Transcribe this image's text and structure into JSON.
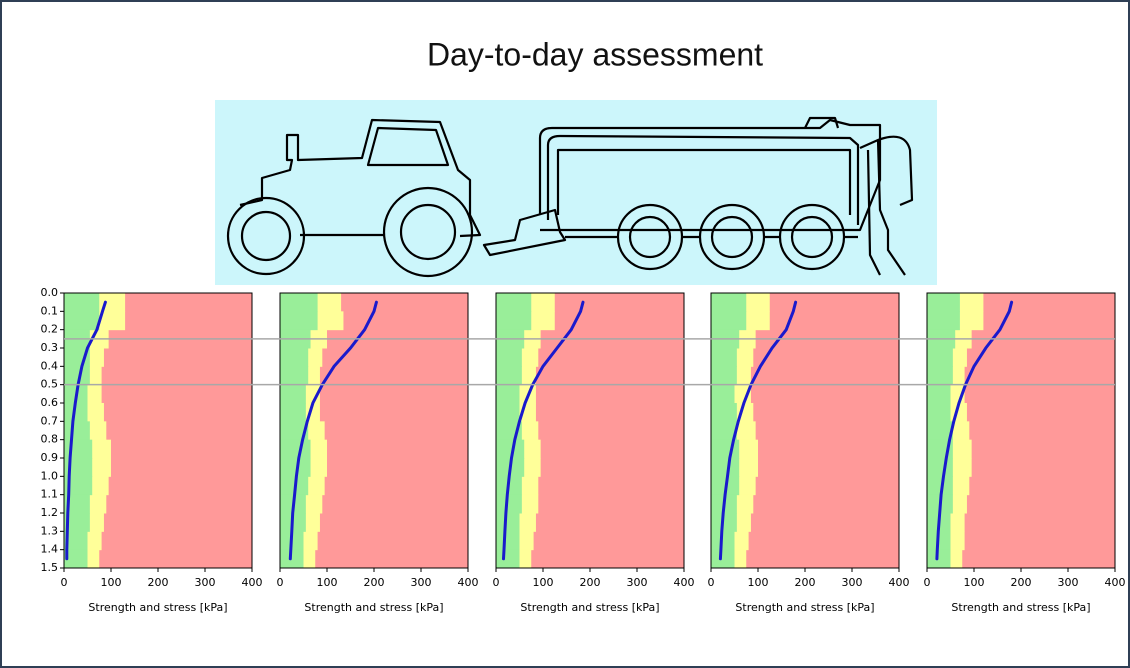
{
  "title": "Day-to-day assessment",
  "reference_depths": [
    0.25,
    0.5
  ],
  "chart_data": [
    {
      "type": "line",
      "xlabel": "Strength and stress [kPa]",
      "xlim": [
        0,
        400
      ],
      "xticks": [
        0,
        100,
        200,
        300,
        400
      ],
      "ylim": [
        0,
        1.5
      ],
      "invert_y": true,
      "yticks": [
        {
          "value": 0,
          "label": "0.0"
        },
        {
          "value": 0.1,
          "label": "0.1"
        },
        {
          "value": 0.2,
          "label": "0.2"
        },
        {
          "value": 0.3,
          "label": "0.3"
        },
        {
          "value": 0.4,
          "label": "0.4"
        },
        {
          "value": 0.5,
          "label": "0.5"
        },
        {
          "value": 0.6,
          "label": "0.6"
        },
        {
          "value": 0.7,
          "label": "0.7"
        },
        {
          "value": 0.8,
          "label": "0.8"
        },
        {
          "value": 0.9,
          "label": "0.9"
        },
        {
          "value": 1,
          "label": "1.0"
        },
        {
          "value": 1.1,
          "label": "1.1"
        },
        {
          "value": 1.2,
          "label": "1.2"
        },
        {
          "value": 1.3,
          "label": "1.3"
        },
        {
          "value": 1.4,
          "label": "1.4"
        },
        {
          "value": 1.5,
          "label": "1.5"
        }
      ],
      "background_color": "#ff9999",
      "zone_depths": [
        0,
        0.1,
        0.2,
        0.3,
        0.4,
        0.5,
        0.6,
        0.7,
        0.8,
        0.9,
        1.0,
        1.1,
        1.2,
        1.3,
        1.4,
        1.5
      ],
      "zones": [
        {
          "color": "#ffff99",
          "values": [
            130,
            130,
            95,
            85,
            80,
            80,
            85,
            90,
            100,
            100,
            95,
            90,
            85,
            80,
            75
          ]
        },
        {
          "color": "#99ee99",
          "values": [
            75,
            75,
            55,
            55,
            55,
            50,
            50,
            55,
            60,
            60,
            60,
            55,
            55,
            50,
            50
          ]
        }
      ],
      "y": [
        0.05,
        0.1,
        0.2,
        0.3,
        0.4,
        0.5,
        0.6,
        0.7,
        0.8,
        0.9,
        1.0,
        1.1,
        1.2,
        1.3,
        1.4,
        1.45
      ],
      "series": [
        {
          "color": "#1a1acc",
          "values": [
            88,
            82,
            70,
            50,
            38,
            30,
            24,
            19,
            16,
            13,
            11,
            10,
            8,
            7,
            6,
            6
          ]
        }
      ]
    },
    {
      "type": "line",
      "xlabel": "Strength and stress [kPa]",
      "xlim": [
        0,
        400
      ],
      "xticks": [
        0,
        100,
        200,
        300,
        400
      ],
      "ylim": [
        0,
        1.5
      ],
      "invert_y": true,
      "background_color": "#ff9999",
      "zone_depths": [
        0,
        0.1,
        0.2,
        0.3,
        0.4,
        0.5,
        0.6,
        0.7,
        0.8,
        0.9,
        1.0,
        1.1,
        1.2,
        1.3,
        1.4,
        1.5
      ],
      "zones": [
        {
          "color": "#ffff99",
          "values": [
            130,
            135,
            100,
            90,
            85,
            85,
            85,
            95,
            100,
            100,
            95,
            90,
            85,
            80,
            75
          ]
        },
        {
          "color": "#99ee99",
          "values": [
            80,
            80,
            65,
            60,
            60,
            55,
            55,
            60,
            65,
            65,
            60,
            55,
            55,
            50,
            50
          ]
        }
      ],
      "y": [
        0.05,
        0.1,
        0.2,
        0.3,
        0.4,
        0.5,
        0.6,
        0.7,
        0.8,
        0.9,
        1.0,
        1.1,
        1.2,
        1.3,
        1.4,
        1.45
      ],
      "series": [
        {
          "color": "#1a1acc",
          "values": [
            205,
            200,
            180,
            150,
            115,
            90,
            70,
            58,
            48,
            40,
            35,
            31,
            27,
            25,
            23,
            22
          ]
        }
      ]
    },
    {
      "type": "line",
      "xlabel": "Strength and stress [kPa]",
      "xlim": [
        0,
        400
      ],
      "xticks": [
        0,
        100,
        200,
        300,
        400
      ],
      "ylim": [
        0,
        1.5
      ],
      "invert_y": true,
      "background_color": "#ff9999",
      "zone_depths": [
        0,
        0.1,
        0.2,
        0.3,
        0.4,
        0.5,
        0.6,
        0.7,
        0.8,
        0.9,
        1.0,
        1.1,
        1.2,
        1.3,
        1.4,
        1.5
      ],
      "zones": [
        {
          "color": "#ffff99",
          "values": [
            125,
            125,
            95,
            90,
            85,
            85,
            85,
            90,
            95,
            95,
            90,
            90,
            85,
            80,
            75
          ]
        },
        {
          "color": "#99ee99",
          "values": [
            75,
            75,
            60,
            55,
            55,
            50,
            50,
            55,
            60,
            60,
            55,
            55,
            50,
            50,
            50
          ]
        }
      ],
      "y": [
        0.05,
        0.1,
        0.2,
        0.3,
        0.4,
        0.5,
        0.6,
        0.7,
        0.8,
        0.9,
        1.0,
        1.1,
        1.2,
        1.3,
        1.4,
        1.45
      ],
      "series": [
        {
          "color": "#1a1acc",
          "values": [
            185,
            180,
            160,
            130,
            100,
            78,
            62,
            50,
            40,
            33,
            28,
            24,
            21,
            19,
            17,
            16
          ]
        }
      ]
    },
    {
      "type": "line",
      "xlabel": "Strength and stress [kPa]",
      "xlim": [
        0,
        400
      ],
      "xticks": [
        0,
        100,
        200,
        300,
        400
      ],
      "ylim": [
        0,
        1.5
      ],
      "invert_y": true,
      "background_color": "#ff9999",
      "zone_depths": [
        0,
        0.1,
        0.2,
        0.3,
        0.4,
        0.5,
        0.6,
        0.7,
        0.8,
        0.9,
        1.0,
        1.1,
        1.2,
        1.3,
        1.4,
        1.5
      ],
      "zones": [
        {
          "color": "#ffff99",
          "values": [
            125,
            125,
            95,
            90,
            85,
            85,
            90,
            95,
            100,
            100,
            95,
            90,
            85,
            80,
            75
          ]
        },
        {
          "color": "#99ee99",
          "values": [
            75,
            75,
            60,
            55,
            55,
            50,
            55,
            55,
            60,
            60,
            60,
            55,
            55,
            50,
            50
          ]
        }
      ],
      "y": [
        0.05,
        0.1,
        0.2,
        0.3,
        0.4,
        0.5,
        0.6,
        0.7,
        0.8,
        0.9,
        1.0,
        1.1,
        1.2,
        1.3,
        1.4,
        1.45
      ],
      "series": [
        {
          "color": "#1a1acc",
          "values": [
            180,
            175,
            160,
            130,
            105,
            85,
            70,
            58,
            48,
            40,
            35,
            30,
            26,
            23,
            21,
            20
          ]
        }
      ]
    },
    {
      "type": "line",
      "xlabel": "Strength and stress [kPa]",
      "xlim": [
        0,
        400
      ],
      "xticks": [
        0,
        100,
        200,
        300,
        400
      ],
      "ylim": [
        0,
        1.5
      ],
      "invert_y": true,
      "background_color": "#ff9999",
      "zone_depths": [
        0,
        0.1,
        0.2,
        0.3,
        0.4,
        0.5,
        0.6,
        0.7,
        0.8,
        0.9,
        1.0,
        1.1,
        1.2,
        1.3,
        1.4,
        1.5
      ],
      "zones": [
        {
          "color": "#ffff99",
          "values": [
            120,
            120,
            95,
            85,
            80,
            80,
            85,
            90,
            95,
            95,
            90,
            85,
            80,
            80,
            75
          ]
        },
        {
          "color": "#99ee99",
          "values": [
            70,
            70,
            60,
            55,
            55,
            50,
            50,
            55,
            55,
            55,
            55,
            55,
            50,
            50,
            50
          ]
        }
      ],
      "y": [
        0.05,
        0.1,
        0.2,
        0.3,
        0.4,
        0.5,
        0.6,
        0.7,
        0.8,
        0.9,
        1.0,
        1.1,
        1.2,
        1.3,
        1.4,
        1.45
      ],
      "series": [
        {
          "color": "#1a1acc",
          "values": [
            180,
            175,
            155,
            125,
            100,
            82,
            68,
            57,
            48,
            41,
            35,
            30,
            27,
            24,
            22,
            21
          ]
        }
      ]
    }
  ]
}
